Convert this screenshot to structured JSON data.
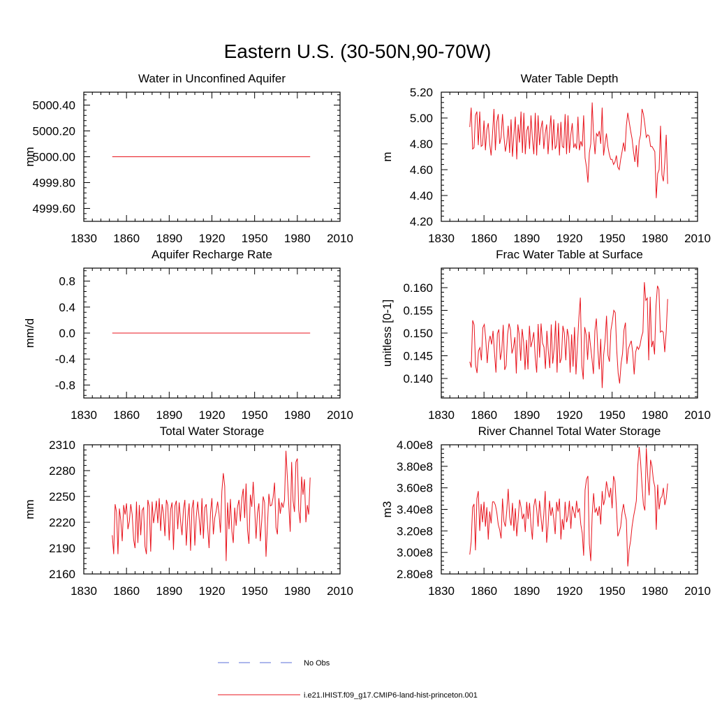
{
  "figure_title": "Eastern U.S. (30-50N,90-70W)",
  "colors": {
    "model": "#e8141d",
    "obs": "#5a6fd8",
    "axis": "#000000"
  },
  "legend": [
    {
      "label": "No Obs",
      "style": "dashed",
      "color": "#5a6fd8"
    },
    {
      "label": "i.e21.IHIST.f09_g17.CMIP6-land-hist-princeton.001",
      "style": "solid",
      "color": "#e8141d"
    }
  ],
  "chart_data": [
    {
      "type": "line",
      "title": "Water in Unconfined Aquifer",
      "xlabel": "",
      "ylabel": "mm",
      "xlim": [
        1830,
        2010
      ],
      "ylim": [
        4999.5,
        5000.5
      ],
      "xticks": [
        1830,
        1860,
        1890,
        1920,
        1950,
        1980,
        2010
      ],
      "yticks": [
        4999.6,
        4999.8,
        5000.0,
        5000.2,
        5000.4
      ],
      "ytick_labels": [
        "4999.60",
        "4999.80",
        "5000.00",
        "5000.20",
        "5000.40"
      ],
      "series": [
        {
          "x_start": 1850,
          "x_end": 1989,
          "values": [
            5000.0,
            5000.0
          ]
        }
      ]
    },
    {
      "type": "line",
      "title": "Water Table Depth",
      "xlabel": "",
      "ylabel": "m",
      "xlim": [
        1830,
        2010
      ],
      "ylim": [
        4.2,
        5.2
      ],
      "xticks": [
        1830,
        1860,
        1890,
        1920,
        1950,
        1980,
        2010
      ],
      "yticks": [
        4.2,
        4.4,
        4.6,
        4.8,
        5.0,
        5.2
      ],
      "ytick_labels": [
        "4.20",
        "4.40",
        "4.60",
        "4.80",
        "5.00",
        "5.20"
      ],
      "series": [
        {
          "x_start": 1850,
          "x_end": 1989,
          "values": [
            4.93,
            5.08,
            4.76,
            4.77,
            5.02,
            5.05,
            4.79,
            5.05,
            4.78,
            4.79,
            4.98,
            4.75,
            4.91,
            4.96,
            4.8,
            4.71,
            4.88,
            5.07,
            4.75,
            4.97,
            5.03,
            4.8,
            4.85,
            5.03,
            4.86,
            4.74,
            4.81,
            4.94,
            4.73,
            4.99,
            4.7,
            4.87,
            5.01,
            4.68,
            4.95,
            4.81,
            5.05,
            4.73,
            5.04,
            4.72,
            4.9,
            4.94,
            4.76,
            5.02,
            4.84,
            4.72,
            5.04,
            4.71,
            5.02,
            4.79,
            4.92,
            4.98,
            4.76,
            4.88,
            4.95,
            4.72,
            4.89,
            5.02,
            4.75,
            4.99,
            4.76,
            4.79,
            4.96,
            4.71,
            4.97,
            4.78,
            4.77,
            5.03,
            4.72,
            5.02,
            4.73,
            4.87,
            4.96,
            4.77,
            4.8,
            4.76,
            5.01,
            4.75,
            4.82,
            4.78,
            5.02,
            4.69,
            4.62,
            4.5,
            4.73,
            4.8,
            5.12,
            4.86,
            4.72,
            4.88,
            4.86,
            4.9,
            4.8,
            5.08,
            4.71,
            4.8,
            4.88,
            4.78,
            4.72,
            4.68,
            4.68,
            4.64,
            4.66,
            4.71,
            4.62,
            4.6,
            4.68,
            4.74,
            4.81,
            4.74,
            4.94,
            5.04,
            4.97,
            4.9,
            4.84,
            4.74,
            4.66,
            4.79,
            4.62,
            4.82,
            4.87,
            5.07,
            5.03,
            4.95,
            4.85,
            4.87,
            4.86,
            4.78,
            4.78,
            4.76,
            4.74,
            4.38,
            4.57,
            4.6,
            4.94,
            4.56,
            4.51,
            4.66,
            4.87,
            4.49
          ]
        }
      ]
    },
    {
      "type": "line",
      "title": "Aquifer Recharge Rate",
      "xlabel": "",
      "ylabel": "mm/d",
      "xlim": [
        1830,
        2010
      ],
      "ylim": [
        -1.0,
        1.0
      ],
      "xticks": [
        1830,
        1860,
        1890,
        1920,
        1950,
        1980,
        2010
      ],
      "yticks": [
        -0.8,
        -0.4,
        0.0,
        0.4,
        0.8
      ],
      "ytick_labels": [
        "-0.8",
        "-0.4",
        "0.0",
        "0.4",
        "0.8"
      ],
      "series": [
        {
          "x_start": 1850,
          "x_end": 1989,
          "values": [
            0.0,
            0.0
          ]
        }
      ]
    },
    {
      "type": "line",
      "title": "Frac Water Table at Surface",
      "xlabel": "",
      "ylabel": "unitless [0-1]",
      "xlim": [
        1830,
        2010
      ],
      "ylim": [
        0.1357,
        0.1643
      ],
      "xticks": [
        1830,
        1860,
        1890,
        1920,
        1950,
        1980,
        2010
      ],
      "yticks": [
        0.14,
        0.145,
        0.15,
        0.155,
        0.16
      ],
      "ytick_labels": [
        "0.140",
        "0.145",
        "0.150",
        "0.155",
        "0.160"
      ],
      "series": [
        {
          "x_start": 1850,
          "x_end": 1989,
          "values": [
            0.1437,
            0.1424,
            0.1528,
            0.1518,
            0.1429,
            0.1412,
            0.1461,
            0.1468,
            0.144,
            0.1512,
            0.1519,
            0.1486,
            0.1434,
            0.1479,
            0.1494,
            0.1475,
            0.1505,
            0.1456,
            0.1413,
            0.1499,
            0.1508,
            0.1441,
            0.1461,
            0.1518,
            0.1419,
            0.1428,
            0.1497,
            0.1521,
            0.1507,
            0.1455,
            0.1468,
            0.1491,
            0.1411,
            0.1519,
            0.1497,
            0.1439,
            0.1509,
            0.148,
            0.1419,
            0.1485,
            0.142,
            0.1516,
            0.1469,
            0.1483,
            0.1502,
            0.1446,
            0.1413,
            0.152,
            0.1446,
            0.1521,
            0.1478,
            0.1469,
            0.1421,
            0.1505,
            0.146,
            0.1423,
            0.1519,
            0.1433,
            0.1466,
            0.1527,
            0.1413,
            0.1522,
            0.1434,
            0.1445,
            0.1516,
            0.15,
            0.144,
            0.1509,
            0.1491,
            0.1413,
            0.1497,
            0.1426,
            0.1513,
            0.1409,
            0.1472,
            0.1534,
            0.1578,
            0.1428,
            0.1398,
            0.1513,
            0.1496,
            0.1441,
            0.1503,
            0.1472,
            0.1443,
            0.141,
            0.1505,
            0.1532,
            0.1465,
            0.142,
            0.1487,
            0.1379,
            0.1451,
            0.1483,
            0.1538,
            0.1451,
            0.1437,
            0.1506,
            0.1526,
            0.155,
            0.1545,
            0.1463,
            0.1411,
            0.1389,
            0.1433,
            0.1455,
            0.1507,
            0.1523,
            0.1432,
            0.1465,
            0.1475,
            0.1483,
            0.1457,
            0.1409,
            0.1458,
            0.147,
            0.1464,
            0.1473,
            0.1491,
            0.1502,
            0.1612,
            0.1572,
            0.1577,
            0.144,
            0.158,
            0.1469,
            0.1483,
            0.1453,
            0.156,
            0.1604,
            0.1596,
            0.1502,
            0.1505,
            0.1502,
            0.1458,
            0.1502,
            0.1575
          ]
        }
      ]
    },
    {
      "type": "line",
      "title": "Total Water Storage",
      "xlabel": "",
      "ylabel": "mm",
      "xlim": [
        1830,
        2010
      ],
      "ylim": [
        2160,
        2310
      ],
      "xticks": [
        1830,
        1860,
        1890,
        1920,
        1950,
        1980,
        2010
      ],
      "yticks": [
        2160,
        2190,
        2220,
        2250,
        2280,
        2310
      ],
      "ytick_labels": [
        "2160",
        "2190",
        "2220",
        "2250",
        "2280",
        "2310"
      ],
      "series": [
        {
          "x_start": 1850,
          "x_end": 1989,
          "values": [
            2205,
            2183,
            2241,
            2232,
            2183,
            2236,
            2222,
            2198,
            2240,
            2229,
            2242,
            2212,
            2221,
            2241,
            2229,
            2200,
            2190,
            2244,
            2196,
            2240,
            2205,
            2234,
            2237,
            2192,
            2183,
            2246,
            2238,
            2186,
            2244,
            2219,
            2231,
            2245,
            2219,
            2248,
            2210,
            2241,
            2230,
            2204,
            2246,
            2240,
            2199,
            2235,
            2243,
            2188,
            2239,
            2245,
            2212,
            2243,
            2221,
            2205,
            2235,
            2246,
            2193,
            2224,
            2242,
            2187,
            2236,
            2246,
            2193,
            2226,
            2244,
            2225,
            2205,
            2248,
            2201,
            2237,
            2241,
            2215,
            2190,
            2231,
            2248,
            2206,
            2225,
            2233,
            2244,
            2230,
            2208,
            2256,
            2277,
            2262,
            2175,
            2243,
            2212,
            2247,
            2210,
            2196,
            2237,
            2216,
            2238,
            2246,
            2221,
            2248,
            2259,
            2225,
            2265,
            2211,
            2195,
            2252,
            2238,
            2267,
            2237,
            2201,
            2231,
            2242,
            2198,
            2222,
            2250,
            2243,
            2180,
            2216,
            2253,
            2239,
            2240,
            2249,
            2266,
            2214,
            2206,
            2248,
            2230,
            2243,
            2237,
            2246,
            2303,
            2272,
            2240,
            2209,
            2290,
            2245,
            2232,
            2290,
            2294,
            2234,
            2219,
            2273,
            2252,
            2270,
            2220,
            2240,
            2229,
            2272
          ]
        }
      ]
    },
    {
      "type": "line",
      "title": "River Channel Total Water Storage",
      "xlabel": "",
      "ylabel": "m3",
      "xlim": [
        1830,
        2010
      ],
      "ylim": [
        280000000.0,
        400000000.0
      ],
      "xticks": [
        1830,
        1860,
        1890,
        1920,
        1950,
        1980,
        2010
      ],
      "yticks": [
        280000000.0,
        300000000.0,
        320000000.0,
        340000000.0,
        360000000.0,
        380000000.0,
        400000000.0
      ],
      "ytick_labels": [
        "2.80e8",
        "3.00e8",
        "3.20e8",
        "3.40e8",
        "3.60e8",
        "3.80e8",
        "4.00e8"
      ],
      "series": [
        {
          "x_start": 1850,
          "x_end": 1989,
          "values": [
            298000000.0,
            310000000.0,
            342000000.0,
            345000000.0,
            302000000.0,
            350000000.0,
            357000000.0,
            320000000.0,
            345000000.0,
            328000000.0,
            347000000.0,
            324000000.0,
            342000000.0,
            312000000.0,
            338000000.0,
            327000000.0,
            347000000.0,
            347000000.0,
            344000000.0,
            337000000.0,
            326000000.0,
            321000000.0,
            313000000.0,
            350000000.0,
            329000000.0,
            324000000.0,
            339000000.0,
            359000000.0,
            333000000.0,
            325000000.0,
            346000000.0,
            320000000.0,
            341000000.0,
            315000000.0,
            331000000.0,
            349000000.0,
            342000000.0,
            331000000.0,
            336000000.0,
            319000000.0,
            347000000.0,
            331000000.0,
            346000000.0,
            325000000.0,
            312000000.0,
            343000000.0,
            350000000.0,
            340000000.0,
            324000000.0,
            348000000.0,
            333000000.0,
            319000000.0,
            335000000.0,
            357000000.0,
            309000000.0,
            325000000.0,
            348000000.0,
            334000000.0,
            342000000.0,
            331000000.0,
            317000000.0,
            347000000.0,
            338000000.0,
            350000000.0,
            312000000.0,
            331000000.0,
            321000000.0,
            347000000.0,
            328000000.0,
            334000000.0,
            348000000.0,
            322000000.0,
            343000000.0,
            338000000.0,
            332000000.0,
            348000000.0,
            337000000.0,
            341000000.0,
            326000000.0,
            318000000.0,
            297000000.0,
            358000000.0,
            368000000.0,
            371000000.0,
            308000000.0,
            292000000.0,
            335000000.0,
            355000000.0,
            337000000.0,
            341000000.0,
            334000000.0,
            343000000.0,
            326000000.0,
            357000000.0,
            344000000.0,
            350000000.0,
            366000000.0,
            358000000.0,
            351000000.0,
            360000000.0,
            341000000.0,
            371000000.0,
            366000000.0,
            342000000.0,
            315000000.0,
            319000000.0,
            324000000.0,
            337000000.0,
            345000000.0,
            336000000.0,
            330000000.0,
            287000000.0,
            303000000.0,
            311000000.0,
            324000000.0,
            333000000.0,
            340000000.0,
            348000000.0,
            380000000.0,
            398000000.0,
            384000000.0,
            362000000.0,
            344000000.0,
            339000000.0,
            397000000.0,
            371000000.0,
            353000000.0,
            386000000.0,
            380000000.0,
            367000000.0,
            361000000.0,
            321000000.0,
            363000000.0,
            340000000.0,
            350000000.0,
            352000000.0,
            360000000.0,
            344000000.0,
            350000000.0,
            364000000.0
          ]
        }
      ]
    }
  ]
}
